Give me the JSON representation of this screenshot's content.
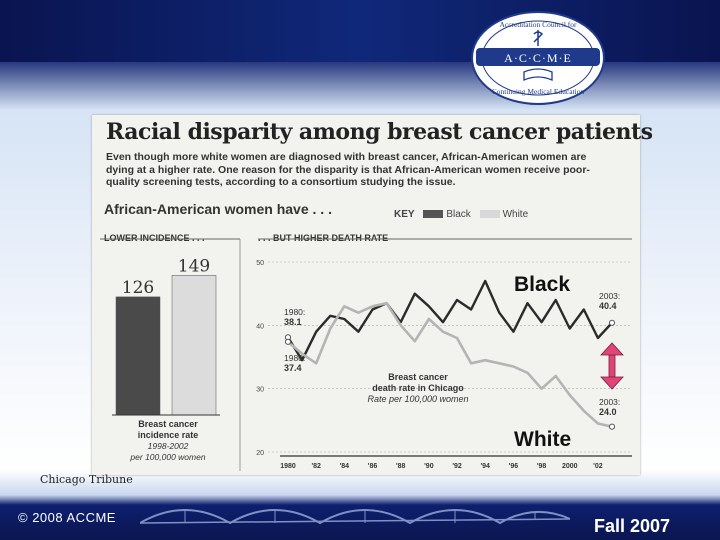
{
  "logo": {
    "ring_text_top": "Accreditation Council for",
    "ring_text_bottom": "Continuing Medical Education",
    "band_text": "A·C·C·M·E"
  },
  "clipping": {
    "headline": "Racial disparity among breast cancer patients",
    "deck": "Even though more white women are diagnosed with breast cancer, African-American women are dying at a higher rate. One reason for the disparity is that African-American women receive poor-quality screening tests, according to a consortium studying the issue.",
    "subhead": "African-American women have . . .",
    "key_label": "KEY",
    "key_black": "Black",
    "key_white": "White",
    "left_panel_title": "LOWER INCIDENCE . . .",
    "right_panel_title": ". . . BUT HIGHER DEATH RATE",
    "bar_caption_1": "Breast cancer",
    "bar_caption_2": "incidence rate",
    "bar_caption_3": "1998-2002",
    "bar_caption_4": "per 100,000 women",
    "line_caption_1": "Breast cancer",
    "line_caption_2": "death rate in Chicago",
    "line_caption_3": "Rate per 100,000 women",
    "ann_1980_black_year": "1980:",
    "ann_1980_black_val": "38.1",
    "ann_1980_white_year": "1980:",
    "ann_1980_white_val": "37.4",
    "ann_2003_black_year": "2003:",
    "ann_2003_black_val": "40.4",
    "ann_2003_white_year": "2003:",
    "ann_2003_white_val": "24.0",
    "overlay_black": "Black",
    "overlay_white": "White"
  },
  "credit": "Chicago Tribune",
  "footer": {
    "copyright": "© 2008 ACCME",
    "season": "Fall 2007"
  },
  "colors": {
    "black_series": "#2b2b2b",
    "white_series": "#b4b4b4",
    "arrow": "#e0457a",
    "navy": "#0e1f6e"
  },
  "chart_data": [
    {
      "type": "bar",
      "title": "LOWER INCIDENCE . . .",
      "categories": [
        "Black",
        "White"
      ],
      "values": [
        126,
        149
      ],
      "data_labels": [
        "126",
        "149"
      ],
      "ylim": [
        0,
        160
      ]
    },
    {
      "type": "line",
      "title": ". . . BUT HIGHER DEATH RATE",
      "x": [
        1980,
        1981,
        1982,
        1983,
        1984,
        1985,
        1986,
        1987,
        1988,
        1989,
        1990,
        1991,
        1992,
        1993,
        1994,
        1995,
        1996,
        1997,
        1998,
        1999,
        2000,
        2001,
        2002,
        2003
      ],
      "x_tick_labels": [
        "1980",
        "'82",
        "'84",
        "'86",
        "'88",
        "'90",
        "'92",
        "'94",
        "'96",
        "'98",
        "2000",
        "'02"
      ],
      "y_ticks": [
        20,
        30,
        40,
        50
      ],
      "ylim": [
        20,
        50
      ],
      "grid": true,
      "series": [
        {
          "name": "Black",
          "values": [
            38.1,
            34.5,
            39.0,
            41.5,
            41.0,
            39.0,
            42.5,
            43.5,
            40.5,
            45.0,
            43.0,
            40.5,
            44.0,
            42.5,
            47.0,
            42.0,
            39.0,
            43.5,
            40.5,
            44.0,
            39.5,
            42.5,
            38.0,
            40.4
          ]
        },
        {
          "name": "White",
          "values": [
            37.4,
            35.5,
            34.0,
            39.5,
            43.0,
            42.0,
            43.0,
            43.5,
            40.0,
            37.5,
            41.0,
            39.0,
            38.0,
            34.0,
            34.5,
            34.0,
            33.5,
            32.5,
            30.0,
            32.0,
            29.0,
            26.5,
            24.5,
            24.0
          ]
        }
      ]
    }
  ]
}
